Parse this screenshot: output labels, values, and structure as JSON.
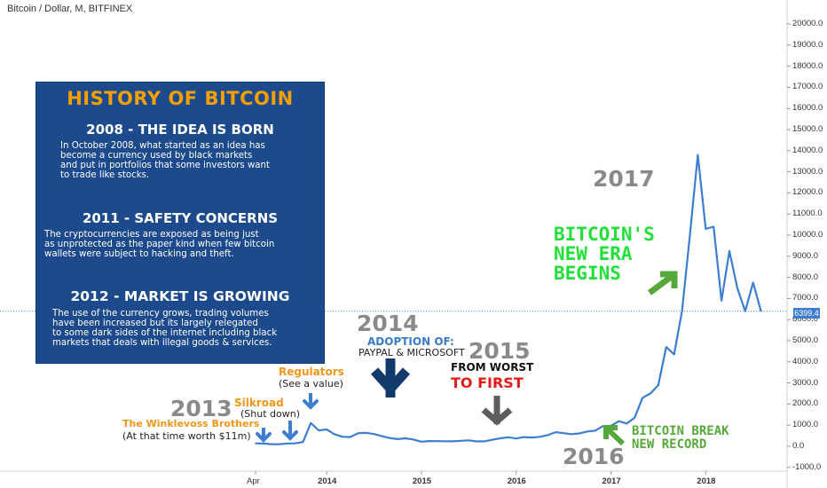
{
  "header": {
    "title": "Bitcoin / Dollar, M, BITFINEX"
  },
  "info_box": {
    "title": "HISTORY OF BITCOIN",
    "sections": [
      {
        "heading": "2008 - THE IDEA IS BORN",
        "text": [
          "In October 2008, what started as an idea has",
          "become a currency used by black markets",
          "and put in portfolios that some investors want",
          "to trade like stocks."
        ]
      },
      {
        "heading": "2011 - SAFETY CONCERNS",
        "text": [
          "The cryptocurrencies are exposed as being just",
          "as unprotected as the paper kind when few bitcoin",
          "wallets were subject to hacking and theft."
        ]
      },
      {
        "heading": "2012 - MARKET IS GROWING",
        "text": [
          "The use of the currency grows, trading volumes",
          "have been increased but its largely relegated",
          "to some dark sides of the internet including black",
          "markets that deals with illegal goods & services."
        ]
      }
    ]
  },
  "annotations": {
    "y2013": "2013",
    "winklevoss": "The Winklevoss Brothers",
    "winklevoss_note": "(At that time worth $11m)",
    "silkroad": "Silkroad",
    "silkroad_note": "(Shut down)",
    "regulators": "Regulators",
    "regulators_note": "(See a value)",
    "y2014": "2014",
    "adoption": "ADOPTION OF:",
    "adoption_note": "PAYPAL & MICROSOFT",
    "y2015": "2015",
    "from_worst": "FROM WORST",
    "to_first": "TO FIRST",
    "y2016": "2016",
    "break_record_1": "BITCOIN BREAK",
    "break_record_2": "NEW RECORD",
    "y2017": "2017",
    "new_era_1": "BITCOIN'S",
    "new_era_2": "NEW ERA",
    "new_era_3": "BEGINS"
  },
  "last_price": "6399.4",
  "colors": {
    "line": "#3d7ed0",
    "box": "#1c4a8c",
    "orange": "#f0961a",
    "green": "#22e03a",
    "red": "#e31a1a"
  },
  "chart_data": {
    "type": "line",
    "title": "Bitcoin / Dollar, M, BITFINEX",
    "series": [
      {
        "x": [
          "2013-04",
          "2013-05",
          "2013-06",
          "2013-07",
          "2013-08",
          "2013-09",
          "2013-10",
          "2013-11",
          "2013-12",
          "2014-01",
          "2014-02",
          "2014-03",
          "2014-04",
          "2014-05",
          "2014-06",
          "2014-07",
          "2014-08",
          "2014-09",
          "2014-10",
          "2014-11",
          "2014-12",
          "2015-01",
          "2015-02",
          "2015-03",
          "2015-04",
          "2015-05",
          "2015-06",
          "2015-07",
          "2015-08",
          "2015-09",
          "2015-10",
          "2015-11",
          "2015-12",
          "2016-01",
          "2016-02",
          "2016-03",
          "2016-04",
          "2016-05",
          "2016-06",
          "2016-07",
          "2016-08",
          "2016-09",
          "2016-10",
          "2016-11",
          "2016-12",
          "2017-01",
          "2017-02",
          "2017-03",
          "2017-04",
          "2017-05",
          "2017-06",
          "2017-07",
          "2017-08",
          "2017-09",
          "2017-10",
          "2017-11",
          "2017-12",
          "2018-01",
          "2018-02",
          "2018-03",
          "2018-04",
          "2018-05",
          "2018-06",
          "2018-07",
          "2018-08"
        ],
        "y": [
          140,
          130,
          100,
          95,
          130,
          140,
          200,
          1100,
          750,
          800,
          570,
          450,
          440,
          620,
          640,
          580,
          480,
          390,
          340,
          380,
          320,
          220,
          250,
          245,
          240,
          235,
          260,
          280,
          230,
          235,
          310,
          380,
          430,
          370,
          435,
          415,
          450,
          530,
          670,
          620,
          575,
          610,
          700,
          740,
          960,
          970,
          1190,
          1080,
          1350,
          2300,
          2500,
          2900,
          4700,
          4350,
          6400,
          10000,
          13800,
          10300,
          10400,
          6900,
          9250,
          7500,
          6400,
          7750,
          6400
        ]
      }
    ],
    "ylim": [
      -1000,
      20800
    ],
    "yticks": [
      "-1000.0",
      "0.0",
      "1000.0",
      "2000.0",
      "3000.0",
      "4000.0",
      "5000.0",
      "6000.0",
      "7000.0",
      "8000.0",
      "9000.0",
      "10000.0",
      "11000.0",
      "12000.0",
      "13000.0",
      "14000.0",
      "15000.0",
      "16000.0",
      "17000.0",
      "18000.0",
      "19000.0",
      "20000.0"
    ],
    "xticks": [
      {
        "label": "Apr",
        "date": "2013-04",
        "bold": false
      },
      {
        "label": "2014",
        "date": "2014-01",
        "bold": true
      },
      {
        "label": "2015",
        "date": "2015-01",
        "bold": true
      },
      {
        "label": "2016",
        "date": "2016-01",
        "bold": true
      },
      {
        "label": "2017",
        "date": "2017-01",
        "bold": true
      },
      {
        "label": "2018",
        "date": "2018-01",
        "bold": true
      }
    ],
    "reference_line": 6399.4
  }
}
